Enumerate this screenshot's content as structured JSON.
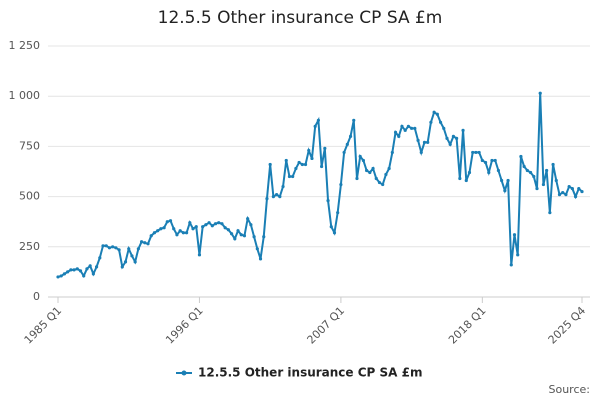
{
  "chart_data": {
    "type": "line",
    "title": "12.5.5 Other insurance CP SA £m",
    "categories": [
      "1985 Q1",
      null,
      null,
      null,
      null,
      null,
      null,
      null,
      null,
      null,
      null,
      null,
      null,
      null,
      null,
      null,
      null,
      null,
      null,
      null,
      null,
      null,
      null,
      null,
      null,
      null,
      null,
      null,
      null,
      null,
      null,
      null,
      null,
      null,
      null,
      null,
      null,
      null,
      null,
      null,
      null,
      null,
      null,
      null,
      "1996 Q1",
      null,
      null,
      null,
      null,
      null,
      null,
      null,
      null,
      null,
      null,
      null,
      null,
      null,
      null,
      null,
      null,
      null,
      null,
      null,
      null,
      null,
      null,
      null,
      null,
      null,
      null,
      null,
      null,
      null,
      null,
      null,
      null,
      null,
      null,
      null,
      null,
      null,
      null,
      null,
      null,
      null,
      null,
      null,
      "2007 Q1",
      null,
      null,
      null,
      null,
      null,
      null,
      null,
      null,
      null,
      null,
      null,
      null,
      null,
      null,
      null,
      null,
      null,
      null,
      null,
      null,
      null,
      null,
      null,
      null,
      null,
      null,
      null,
      null,
      null,
      null,
      null,
      null,
      null,
      null,
      null,
      null,
      null,
      null,
      null,
      null,
      null,
      null,
      null,
      "2018 Q1",
      null,
      null,
      null,
      null,
      null,
      null,
      null,
      null,
      null,
      null,
      null,
      null,
      null,
      null,
      null,
      null,
      null,
      null,
      null,
      null,
      null,
      null,
      null,
      null,
      null,
      null,
      null,
      null,
      null,
      null,
      "2025 Q4"
    ],
    "series": [
      {
        "name": "12.5.5 Other insurance CP SA £m",
        "color": "#1a7fb5",
        "values": [
          100,
          105,
          115,
          125,
          135,
          135,
          140,
          130,
          105,
          140,
          155,
          115,
          150,
          195,
          255,
          255,
          245,
          250,
          245,
          235,
          150,
          175,
          240,
          205,
          175,
          240,
          275,
          270,
          265,
          305,
          320,
          330,
          340,
          345,
          375,
          380,
          340,
          310,
          330,
          320,
          320,
          370,
          340,
          350,
          210,
          350,
          360,
          370,
          355,
          365,
          370,
          365,
          345,
          335,
          315,
          290,
          330,
          310,
          305,
          390,
          360,
          300,
          240,
          190,
          300,
          490,
          660,
          500,
          510,
          500,
          550,
          680,
          600,
          600,
          640,
          670,
          660,
          660,
          730,
          690,
          850,
          880,
          650,
          740,
          480,
          350,
          320,
          420,
          560,
          720,
          760,
          800,
          880,
          590,
          700,
          680,
          630,
          620,
          640,
          590,
          570,
          560,
          610,
          640,
          720,
          820,
          800,
          850,
          830,
          850,
          840,
          840,
          780,
          720,
          770,
          770,
          870,
          920,
          910,
          870,
          840,
          790,
          760,
          800,
          790,
          590,
          830,
          580,
          620,
          720,
          720,
          720,
          680,
          670,
          620,
          680,
          680,
          630,
          580,
          530,
          580,
          160,
          310,
          210,
          700,
          650,
          630,
          620,
          600,
          540,
          1015,
          560,
          630,
          420,
          660,
          580,
          510,
          520,
          510,
          550,
          540,
          500,
          540,
          525
        ]
      }
    ],
    "ylim": [
      0,
      1250
    ],
    "yticks": [
      0,
      250,
      500,
      750,
      {
        "value": 1000,
        "label": "1 000"
      },
      {
        "value": 1250,
        "label": "1 250"
      }
    ],
    "grid": true,
    "source": "Source:"
  }
}
